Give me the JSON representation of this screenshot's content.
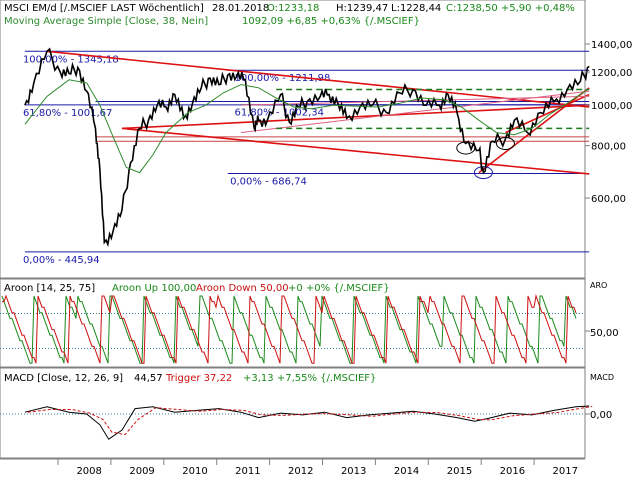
{
  "chart_data": [
    {
      "type": "line",
      "panel": "price",
      "header": {
        "instrument": "MSCI EM/d [/.MSCIEF LAST Wöchentlich]",
        "date": "28.01.2018",
        "open": "O:1233,18",
        "high": "H:1239,47",
        "low": "L:1228,44",
        "close_change": "C:1238,50 +5,90 +0,48%"
      },
      "indicator_label": "Moving Average Simple [Close, 38, Nein]",
      "indicator_value": "1092,09 +6,85 +0,63% {/.MSCIEF}",
      "y_ticks": [
        "1400,00",
        "1200,00",
        "1000,00",
        "800,00",
        "600,00"
      ],
      "y_tick_values": [
        1400,
        1200,
        1000,
        800,
        600
      ],
      "x_ticks": [
        "2008",
        "2009",
        "2010",
        "2011",
        "2012",
        "2013",
        "2014",
        "2015",
        "2016",
        "2017"
      ],
      "fib_labels": [
        {
          "text": "100,00% - 1345,18",
          "value": 1345.18
        },
        {
          "text": "100,00% - 1211,98",
          "value": 1211.98
        },
        {
          "text": "61,80% - 1001,67",
          "value": 1001.67
        },
        {
          "text": "61,80% - 1002,34",
          "value": 1002.34
        },
        {
          "text": "0,00% - 686,74",
          "value": 686.74
        },
        {
          "text": "0,00% - 445,94",
          "value": 445.94
        }
      ],
      "series": [
        {
          "name": "MSCI EM",
          "color": "#000000",
          "x": [
            "2007-05",
            "2007-07",
            "2007-10",
            "2008-01",
            "2008-03",
            "2008-05",
            "2008-07",
            "2008-09",
            "2008-10",
            "2008-11",
            "2009-01",
            "2009-03",
            "2009-05",
            "2009-07",
            "2009-09",
            "2009-11",
            "2010-01",
            "2010-03",
            "2010-05",
            "2010-07",
            "2010-09",
            "2010-11",
            "2011-01",
            "2011-03",
            "2011-05",
            "2011-07",
            "2011-09",
            "2011-10",
            "2011-12",
            "2012-03",
            "2012-05",
            "2012-07",
            "2012-09",
            "2012-12",
            "2013-02",
            "2013-04",
            "2013-06",
            "2013-09",
            "2013-12",
            "2014-03",
            "2014-06",
            "2014-09",
            "2014-12",
            "2015-03",
            "2015-05",
            "2015-07",
            "2015-09",
            "2015-12",
            "2016-01",
            "2016-03",
            "2016-06",
            "2016-08",
            "2016-11",
            "2017-02",
            "2017-05",
            "2017-08",
            "2017-11",
            "2018-01"
          ],
          "y": [
            1000,
            1130,
            1345,
            1200,
            1190,
            1230,
            1080,
            880,
            700,
            470,
            500,
            560,
            730,
            880,
            920,
            1000,
            990,
            1060,
            930,
            1010,
            1100,
            1160,
            1120,
            1180,
            1170,
            1150,
            880,
            920,
            920,
            1060,
            910,
            990,
            1020,
            1050,
            1060,
            1010,
            930,
            990,
            1005,
            960,
            1070,
            1090,
            1000,
            1000,
            1060,
            960,
            810,
            780,
            690,
            820,
            830,
            920,
            860,
            960,
            1020,
            1090,
            1140,
            1238
          ]
        },
        {
          "name": "Moving Average Simple",
          "color": "#2e8b2e",
          "x": [
            "2007-05",
            "2007-10",
            "2008-03",
            "2008-07",
            "2008-10",
            "2009-01",
            "2009-04",
            "2009-07",
            "2009-10",
            "2010-01",
            "2010-06",
            "2010-10",
            "2011-02",
            "2011-06",
            "2011-10",
            "2012-02",
            "2012-06",
            "2012-10",
            "2013-03",
            "2013-08",
            "2014-01",
            "2014-06",
            "2014-11",
            "2015-04",
            "2015-08",
            "2015-12",
            "2016-04",
            "2016-08",
            "2016-12",
            "2017-04",
            "2017-08",
            "2017-12",
            "2018-01"
          ],
          "y": [
            900,
            1050,
            1150,
            1130,
            1000,
            840,
            710,
            690,
            760,
            860,
            960,
            1000,
            1070,
            1120,
            1100,
            1040,
            990,
            980,
            1000,
            995,
            990,
            1010,
            1040,
            1030,
            990,
            920,
            860,
            850,
            880,
            950,
            1010,
            1080,
            1092
          ]
        }
      ],
      "aroon_series": {
        "up": "Aroon Up",
        "down": "Aroon Down"
      }
    },
    {
      "type": "line",
      "panel": "aroon",
      "indicator_label": "Aroon [14, 25, 75]",
      "up_label": "Aroon Up 100,00",
      "down_label": "Aroon Down 50,00",
      "change": "+0 +0% {/.MSCIEF}",
      "axis_tag": "ARO",
      "y_ticks": [
        "50,00"
      ],
      "ylim": [
        0,
        100
      ],
      "levels": [
        25,
        75
      ]
    },
    {
      "type": "line",
      "panel": "macd",
      "indicator_label": "MACD [Close, 12, 26, 9]",
      "macd_value": "44,57",
      "trigger_label": "Trigger 37,22",
      "change": "+3,13 +7,55% {/.MSCIEF}",
      "axis_tag": "MACD",
      "y_ticks": [
        "0,00"
      ]
    }
  ],
  "colors": {
    "price_line": "#000000",
    "sma": "#2e8b2e",
    "trend_red": "#dd1111",
    "fib_blue": "#1a1aa8",
    "dashed_green": "#1b7a1b",
    "aroon_up": "#1b8a1b",
    "aroon_down": "#cc1111",
    "positive_text": "#1b8a1b",
    "negative_text": "#cc1111"
  }
}
